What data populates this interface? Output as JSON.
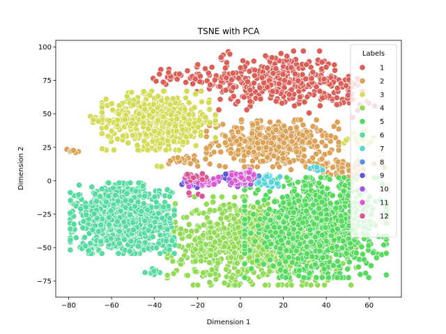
{
  "chart_data": {
    "type": "scatter",
    "title": "TSNE with PCA",
    "xlabel": "Dimension 1",
    "ylabel": "Dimension 2",
    "xlim": [
      -86,
      75
    ],
    "ylim": [
      -87,
      105
    ],
    "xticks": [
      -80,
      -60,
      -40,
      -20,
      0,
      20,
      40,
      60
    ],
    "yticks": [
      -75,
      -50,
      -25,
      0,
      25,
      50,
      75,
      100
    ],
    "grid": false,
    "legend": {
      "title": "Labels",
      "placement": "top-right"
    },
    "series": [
      {
        "name": "1",
        "color": "#db5f57",
        "clusters": [
          {
            "cx": 15,
            "cy": 75,
            "sx": 16,
            "sy": 10,
            "n": 320
          },
          {
            "cx": -28,
            "cy": 78,
            "sx": 6,
            "sy": 3,
            "n": 30
          },
          {
            "cx": 45,
            "cy": 65,
            "sx": 8,
            "sy": 8,
            "n": 60
          },
          {
            "cx": -8,
            "cy": 93,
            "sx": 2,
            "sy": 2,
            "n": 6
          }
        ]
      },
      {
        "name": "2",
        "color": "#dba157",
        "clusters": [
          {
            "cx": 15,
            "cy": 28,
            "sx": 14,
            "sy": 8,
            "n": 380
          },
          {
            "cx": 45,
            "cy": 10,
            "sx": 10,
            "sy": 4,
            "n": 60
          },
          {
            "cx": -78,
            "cy": 22,
            "sx": 1.5,
            "sy": 1.5,
            "n": 8
          },
          {
            "cx": -25,
            "cy": 15,
            "sx": 4,
            "sy": 2,
            "n": 20
          }
        ]
      },
      {
        "name": "3",
        "color": "#d3db57",
        "clusters": [
          {
            "cx": -38,
            "cy": 45,
            "sx": 12,
            "sy": 10,
            "n": 520
          },
          {
            "cx": -68,
            "cy": 45,
            "sx": 1.5,
            "sy": 2,
            "n": 8
          },
          {
            "cx": -38,
            "cy": 10,
            "sx": 2,
            "sy": 1.5,
            "n": 6
          },
          {
            "cx": 55,
            "cy": 30,
            "sx": 4,
            "sy": 4,
            "n": 15
          }
        ]
      },
      {
        "name": "4",
        "color": "#91db57",
        "clusters": [
          {
            "cx": 10,
            "cy": -45,
            "sx": 20,
            "sy": 15,
            "n": 1100
          }
        ]
      },
      {
        "name": "5",
        "color": "#57db5f",
        "clusters": [
          {
            "cx": 35,
            "cy": -35,
            "sx": 15,
            "sy": 17,
            "n": 950
          }
        ]
      },
      {
        "name": "6",
        "color": "#57dba1",
        "clusters": [
          {
            "cx": -55,
            "cy": -28,
            "sx": 11,
            "sy": 12,
            "n": 900
          },
          {
            "cx": -40,
            "cy": -68,
            "sx": 2,
            "sy": 1.5,
            "n": 10
          },
          {
            "cx": -35,
            "cy": -45,
            "sx": 3,
            "sy": 3,
            "n": 25
          }
        ]
      },
      {
        "name": "7",
        "color": "#57d3db",
        "clusters": [
          {
            "cx": 12,
            "cy": 0,
            "sx": 3,
            "sy": 2,
            "n": 35
          },
          {
            "cx": 35,
            "cy": 10,
            "sx": 2,
            "sy": 2,
            "n": 6
          }
        ]
      },
      {
        "name": "8",
        "color": "#5791db",
        "clusters": [
          {
            "cx": 5,
            "cy": 2,
            "sx": 2,
            "sy": 2,
            "n": 12
          }
        ]
      },
      {
        "name": "9",
        "color": "#5f57db",
        "clusters": [
          {
            "cx": -2,
            "cy": 2,
            "sx": 3,
            "sy": 2,
            "n": 40
          },
          {
            "cx": -22,
            "cy": -2,
            "sx": 3,
            "sy": 2,
            "n": 15
          }
        ]
      },
      {
        "name": "10",
        "color": "#a157db",
        "clusters": [
          {
            "cx": 0,
            "cy": 0,
            "sx": 3,
            "sy": 2,
            "n": 35
          },
          {
            "cx": -20,
            "cy": 0,
            "sx": 3,
            "sy": 2,
            "n": 20
          }
        ]
      },
      {
        "name": "11",
        "color": "#db57d3",
        "clusters": [
          {
            "cx": 2,
            "cy": 3,
            "sx": 3,
            "sy": 2.5,
            "n": 50
          },
          {
            "cx": -17,
            "cy": 0,
            "sx": 4,
            "sy": 2,
            "n": 30
          }
        ]
      },
      {
        "name": "12",
        "color": "#db5791",
        "clusters": [
          {
            "cx": -20,
            "cy": 2,
            "sx": 3,
            "sy": 2,
            "n": 15
          },
          {
            "cx": -22,
            "cy": -10,
            "sx": 2,
            "sy": 2,
            "n": 4
          }
        ]
      }
    ]
  }
}
